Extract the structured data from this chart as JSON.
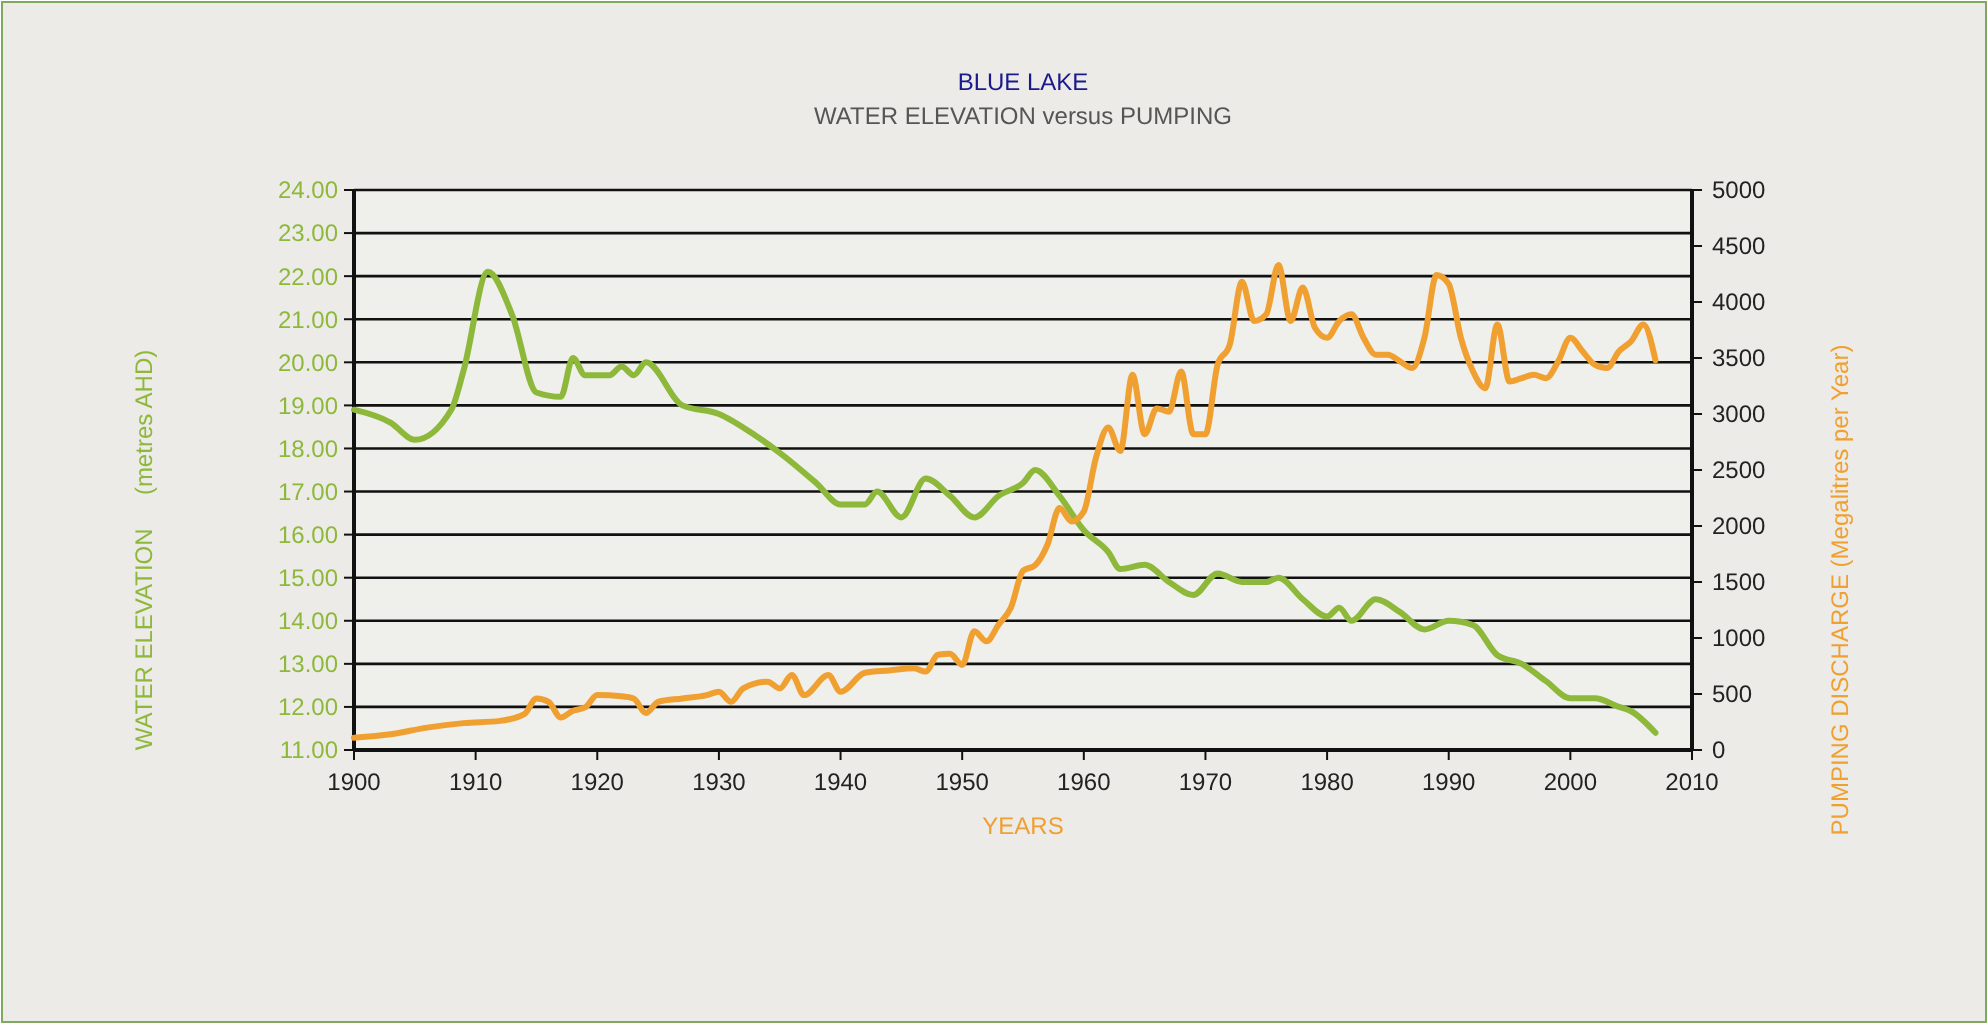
{
  "chart_data": {
    "type": "line",
    "title": "BLUE LAKE",
    "subtitle": "WATER ELEVATION versus PUMPING",
    "xlabel": "YEARS",
    "ylabel": "WATER ELEVATION     (metres AHD)",
    "y2label": "PUMPING DISCHARGE (Megalitres per Year)",
    "xlim": [
      1900,
      2010
    ],
    "xticks": [
      1900,
      1910,
      1920,
      1930,
      1940,
      1950,
      1960,
      1970,
      1980,
      1990,
      2000,
      2010
    ],
    "ylim": [
      11,
      24
    ],
    "yticks": [
      {
        "value": 11,
        "label": "11.00"
      },
      {
        "value": 12,
        "label": "12.00"
      },
      {
        "value": 13,
        "label": "13.00"
      },
      {
        "value": 14,
        "label": "14.00"
      },
      {
        "value": 15,
        "label": "15.00"
      },
      {
        "value": 16,
        "label": "16.00"
      },
      {
        "value": 17,
        "label": "17.00"
      },
      {
        "value": 18,
        "label": "18.00"
      },
      {
        "value": 19,
        "label": "19.00"
      },
      {
        "value": 20,
        "label": "20.00"
      },
      {
        "value": 21,
        "label": "21.00"
      },
      {
        "value": 22,
        "label": "22.00"
      },
      {
        "value": 23,
        "label": "23.00"
      },
      {
        "value": 24,
        "label": "24.00"
      }
    ],
    "y2lim": [
      0,
      5000
    ],
    "y2ticks": [
      0,
      500,
      1000,
      1500,
      2000,
      2500,
      3000,
      3500,
      4000,
      4500,
      5000
    ],
    "grid": "y",
    "marker": "none",
    "line_style": "solid",
    "series": [
      {
        "color": "#8db83a",
        "x": [
          1900,
          1903,
          1905,
          1908,
          1909,
          1911,
          1913,
          1915,
          1917,
          1918,
          1919,
          1921,
          1922,
          1923,
          1924,
          1927,
          1930,
          1933,
          1935,
          1938,
          1940,
          1942,
          1943,
          1945,
          1947,
          1949,
          1951,
          1953,
          1955,
          1956,
          1958,
          1960,
          1962,
          1963,
          1965,
          1967,
          1969,
          1971,
          1973,
          1975,
          1976,
          1978,
          1980,
          1981,
          1982,
          1984,
          1986,
          1988,
          1990,
          1992,
          1994,
          1996,
          1998,
          2000,
          2002,
          2004,
          2005,
          2007
        ],
        "values": [
          18.9,
          18.6,
          18.2,
          18.9,
          19.8,
          22.1,
          21.1,
          19.3,
          19.2,
          20.1,
          19.7,
          19.7,
          19.9,
          19.7,
          20.0,
          19.0,
          18.8,
          18.3,
          17.9,
          17.2,
          16.7,
          16.7,
          17.0,
          16.4,
          17.3,
          16.9,
          16.4,
          16.9,
          17.2,
          17.5,
          16.9,
          16.1,
          15.6,
          15.2,
          15.3,
          14.9,
          14.6,
          15.1,
          14.9,
          14.9,
          15.0,
          14.5,
          14.1,
          14.3,
          14.0,
          14.5,
          14.2,
          13.8,
          14.0,
          13.9,
          13.2,
          13.0,
          12.6,
          12.2,
          12.2,
          12.0,
          11.9,
          11.4
        ]
      },
      {
        "color": "#f0a030",
        "axis": "y2",
        "x": [
          1900,
          1903,
          1906,
          1909,
          1912,
          1914,
          1915,
          1916,
          1917,
          1918,
          1919,
          1920,
          1922,
          1923,
          1924,
          1925,
          1927,
          1929,
          1930,
          1931,
          1932,
          1934,
          1935,
          1936,
          1937,
          1939,
          1940,
          1942,
          1944,
          1946,
          1947,
          1948,
          1949,
          1950,
          1951,
          1952,
          1953,
          1954,
          1955,
          1956,
          1957,
          1958,
          1959,
          1960,
          1961,
          1962,
          1963,
          1964,
          1965,
          1966,
          1967,
          1968,
          1969,
          1970,
          1971,
          1972,
          1973,
          1974,
          1975,
          1976,
          1977,
          1978,
          1979,
          1980,
          1981,
          1982,
          1983,
          1984,
          1985,
          1986,
          1987,
          1988,
          1989,
          1990,
          1991,
          1992,
          1993,
          1994,
          1995,
          1996,
          1997,
          1998,
          1999,
          2000,
          2001,
          2002,
          2003,
          2004,
          2005,
          2006,
          2007
        ],
        "values": [
          110,
          140,
          200,
          240,
          260,
          320,
          460,
          430,
          290,
          350,
          380,
          490,
          480,
          460,
          330,
          430,
          460,
          490,
          520,
          430,
          550,
          610,
          550,
          670,
          490,
          670,
          520,
          690,
          710,
          730,
          700,
          850,
          860,
          760,
          1060,
          970,
          1120,
          1270,
          1600,
          1650,
          1830,
          2160,
          2040,
          2130,
          2610,
          2880,
          2670,
          3350,
          2820,
          3050,
          3020,
          3380,
          2820,
          2820,
          3440,
          3620,
          4180,
          3830,
          3890,
          4330,
          3830,
          4130,
          3770,
          3680,
          3830,
          3890,
          3680,
          3530,
          3530,
          3470,
          3410,
          3680,
          4240,
          4160,
          3680,
          3380,
          3230,
          3800,
          3290,
          3320,
          3350,
          3320,
          3470,
          3680,
          3560,
          3440,
          3410,
          3560,
          3650,
          3800,
          3480
        ]
      }
    ]
  }
}
